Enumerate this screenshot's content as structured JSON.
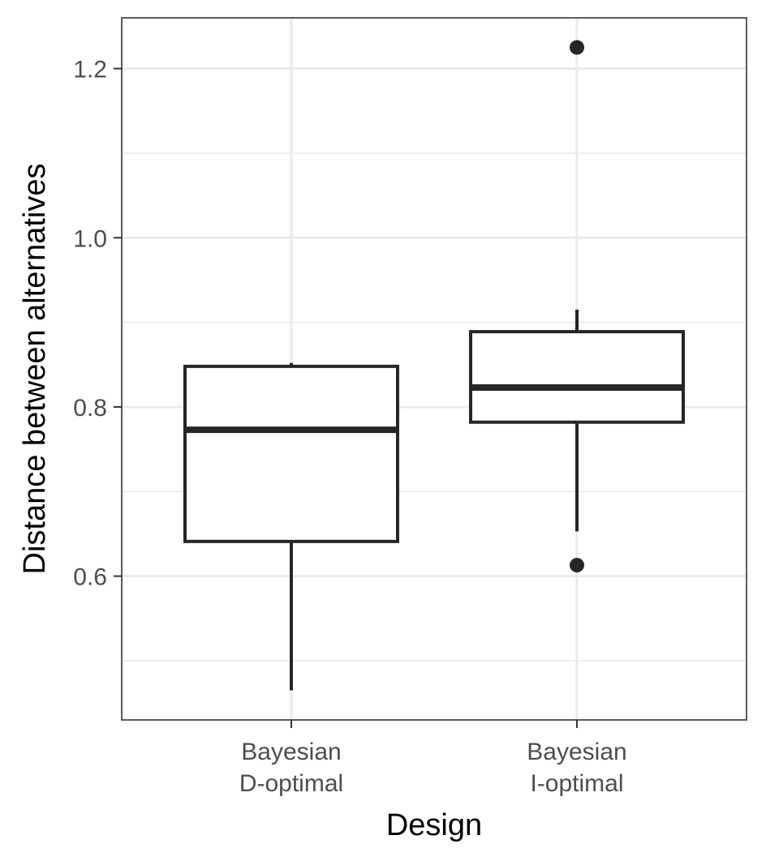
{
  "chart_data": {
    "type": "boxplot",
    "title": "",
    "xlabel": "Design",
    "ylabel": "Distance between alternatives",
    "ylim": [
      0.43,
      1.26
    ],
    "yticks": [
      0.6,
      0.8,
      1.0,
      1.2
    ],
    "ytick_labels": [
      "0.6",
      "0.8",
      "1.0",
      "1.2"
    ],
    "y_minor_ticks": [
      0.5,
      0.7,
      0.9,
      1.1
    ],
    "grid": true,
    "categories": [
      {
        "label_lines": [
          "Bayesian",
          "D-optimal"
        ]
      },
      {
        "label_lines": [
          "Bayesian",
          "I-optimal"
        ]
      }
    ],
    "boxes": [
      {
        "whisker_low": 0.465,
        "q1": 0.641,
        "median": 0.773,
        "q3": 0.848,
        "whisker_high": 0.852,
        "outliers": []
      },
      {
        "whisker_low": 0.653,
        "q1": 0.782,
        "median": 0.823,
        "q3": 0.889,
        "whisker_high": 0.915,
        "outliers": [
          1.225,
          0.613
        ]
      }
    ],
    "colors": {
      "box_stroke": "#262626",
      "grid": "#ebebeb",
      "panel_border": "#333333",
      "outlier": "#262626"
    }
  }
}
